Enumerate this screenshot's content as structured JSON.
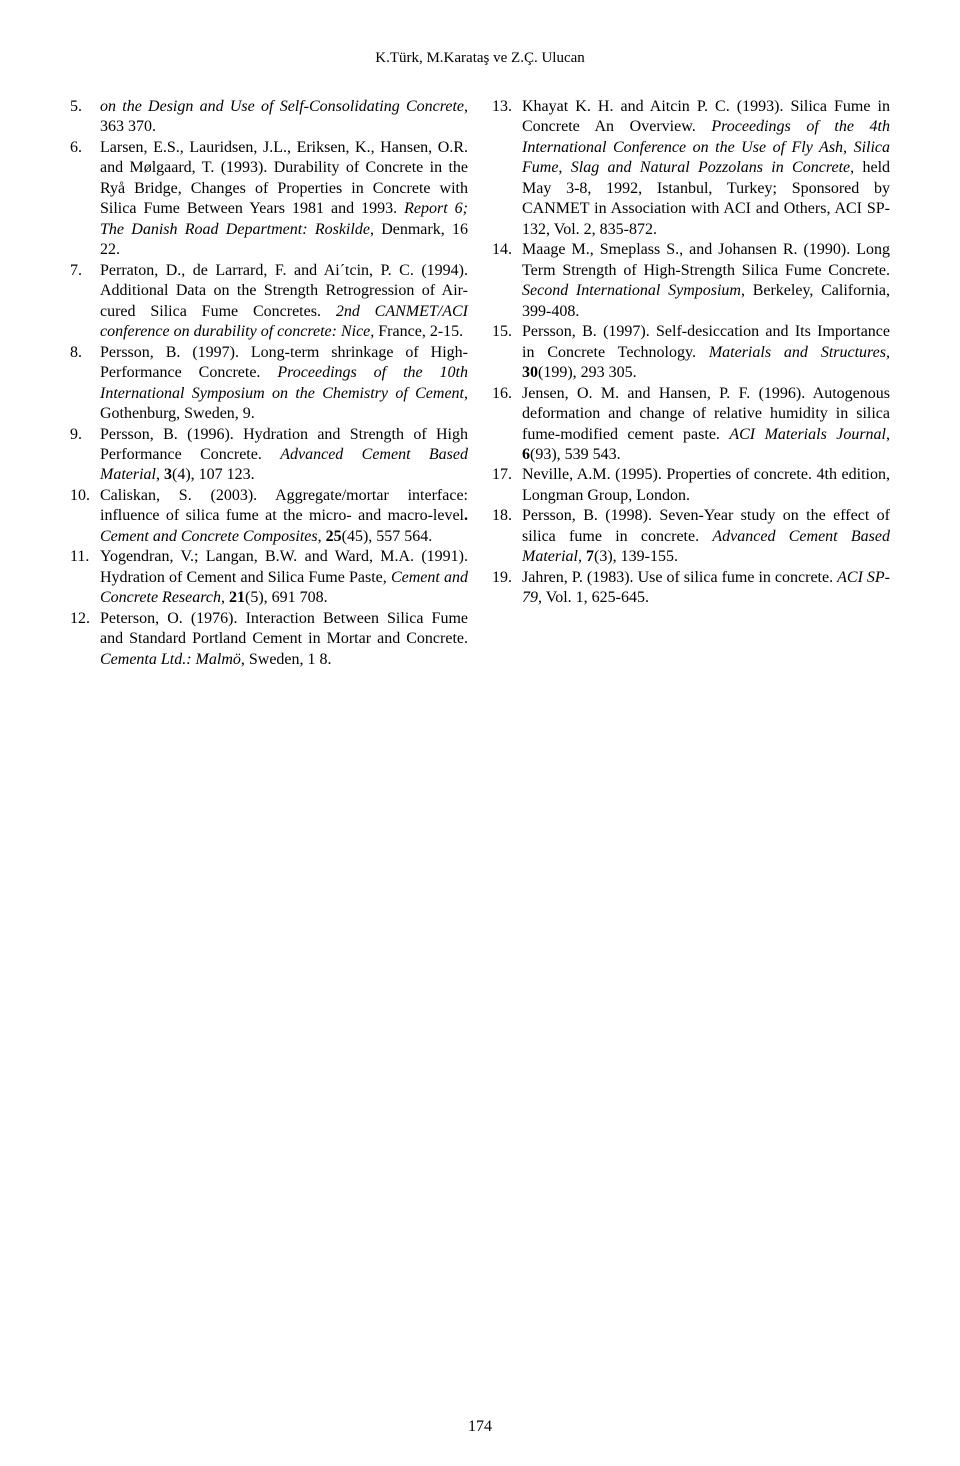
{
  "running_head": "K.Türk, M.Karataş ve Z.Ç. Ulucan",
  "page_number": "174",
  "references": [
    {
      "segments": [
        {
          "style": "italic",
          "text": "on the Design and Use of Self-Consolidating Concrete"
        },
        {
          "style": "plain",
          "text": ", 363 370."
        }
      ]
    },
    {
      "segments": [
        {
          "style": "plain",
          "text": "Larsen, E.S., Lauridsen, J.L., Eriksen, K., Hansen, O.R. and Mølgaard, T. (1993). Durability of Concrete in the Ryå Bridge, Changes of Properties in Concrete with Silica Fume Between Years 1981 and 1993. "
        },
        {
          "style": "italic",
          "text": "Report 6; The Danish Road Department: Roskilde"
        },
        {
          "style": "plain",
          "text": ", Denmark, 16 22."
        }
      ]
    },
    {
      "segments": [
        {
          "style": "plain",
          "text": "Perraton, D., de Larrard, F. and Ai´tcin, P. C. (1994). Additional Data on the Strength Retrogression of Air-cured Silica Fume Concretes. "
        },
        {
          "style": "italic",
          "text": "2nd CANMET/ACI conference on durability of concrete: Nice,"
        },
        {
          "style": "plain",
          "text": " France, 2-15."
        }
      ]
    },
    {
      "segments": [
        {
          "style": "plain",
          "text": "Persson, B. (1997). Long-term shrinkage of High-Performance Concrete. "
        },
        {
          "style": "italic",
          "text": "Proceedings of the 10th International Symposium on the Chemistry of Cement"
        },
        {
          "style": "plain",
          "text": ", Gothenburg, Sweden, 9."
        }
      ]
    },
    {
      "segments": [
        {
          "style": "plain",
          "text": "Persson, B. (1996). Hydration and Strength of High Performance Concrete. "
        },
        {
          "style": "italic",
          "text": "Advanced Cement Based Material"
        },
        {
          "style": "plain",
          "text": ", "
        },
        {
          "style": "bold",
          "text": "3"
        },
        {
          "style": "plain",
          "text": "(4), 107 123."
        }
      ]
    },
    {
      "segments": [
        {
          "style": "plain",
          "text": "Caliskan, S. (2003). Aggregate/mortar interface: influence of silica fume at the micro- and macro-level"
        },
        {
          "style": "bold",
          "text": ". "
        },
        {
          "style": "italic",
          "text": "Cement and Concrete Composites"
        },
        {
          "style": "plain",
          "text": ", "
        },
        {
          "style": "bold",
          "text": "25"
        },
        {
          "style": "plain",
          "text": "(45), 557 564."
        }
      ]
    },
    {
      "segments": [
        {
          "style": "plain",
          "text": "Yogendran, V.; Langan, B.W. and Ward, M.A. (1991). Hydration of Cement and Silica Fume Paste, "
        },
        {
          "style": "italic",
          "text": "Cement and Concrete Research"
        },
        {
          "style": "plain",
          "text": ", "
        },
        {
          "style": "bold",
          "text": "21"
        },
        {
          "style": "plain",
          "text": "(5), 691 708."
        }
      ]
    },
    {
      "segments": [
        {
          "style": "plain",
          "text": "Peterson, O. (1976). Interaction Between Silica Fume and Standard Portland Cement in Mortar and Concrete. "
        },
        {
          "style": "italic",
          "text": "Cementa Ltd.: Malmö"
        },
        {
          "style": "plain",
          "text": ", Sweden, 1 8."
        }
      ]
    },
    {
      "segments": [
        {
          "style": "plain",
          "text": "Khayat K. H. and Aitcin P. C. (1993). Silica Fume in Concrete An Overview. "
        },
        {
          "style": "italic",
          "text": "Proceedings of the 4th International Conference on the Use of Fly Ash, Silica Fume, Slag and Natural Pozzolans in Concrete"
        },
        {
          "style": "plain",
          "text": ", held May 3-8, 1992, Istanbul, Turkey; Sponsored by CANMET in Association with ACI and Others, ACI SP-132, Vol. 2, 835-872."
        }
      ]
    },
    {
      "segments": [
        {
          "style": "plain",
          "text": "Maage M., Smeplass S., and Johansen R. (1990). Long Term Strength of High-Strength Silica Fume Concrete. "
        },
        {
          "style": "italic",
          "text": "Second International Symposium"
        },
        {
          "style": "plain",
          "text": ", Berkeley, California, 399-408."
        }
      ]
    },
    {
      "segments": [
        {
          "style": "plain",
          "text": "Persson, B. (1997). Self-desiccation and Its Importance in Concrete Technology. "
        },
        {
          "style": "italic",
          "text": "Materials and Structures,"
        },
        {
          "style": "plain",
          "text": " "
        },
        {
          "style": "bold",
          "text": "30"
        },
        {
          "style": "plain",
          "text": "(199), 293 305."
        }
      ]
    },
    {
      "segments": [
        {
          "style": "plain",
          "text": "Jensen, O. M. and Hansen, P. F. (1996). Autogenous deformation and change of relative humidity in silica fume-modified cement paste. "
        },
        {
          "style": "italic",
          "text": "ACI Materials Journal"
        },
        {
          "style": "plain",
          "text": ", "
        },
        {
          "style": "bold",
          "text": "6"
        },
        {
          "style": "plain",
          "text": "(93), 539 543."
        }
      ]
    },
    {
      "segments": [
        {
          "style": "plain",
          "text": "Neville, A.M. (1995). Properties of concrete. 4th edition, Longman Group, London."
        }
      ]
    },
    {
      "segments": [
        {
          "style": "plain",
          "text": "Persson, B. (1998). Seven-Year study on the effect of silica fume in concrete. "
        },
        {
          "style": "italic",
          "text": "Advanced Cement Based Material,"
        },
        {
          "style": "plain",
          "text": " "
        },
        {
          "style": "bold",
          "text": "7"
        },
        {
          "style": "plain",
          "text": "(3), 139-155."
        }
      ]
    },
    {
      "segments": [
        {
          "style": "plain",
          "text": "Jahren, P. (1983). Use of silica fume in concrete. "
        },
        {
          "style": "italic",
          "text": "ACI SP-79"
        },
        {
          "style": "plain",
          "text": ", Vol. 1, 625-645."
        }
      ]
    }
  ]
}
